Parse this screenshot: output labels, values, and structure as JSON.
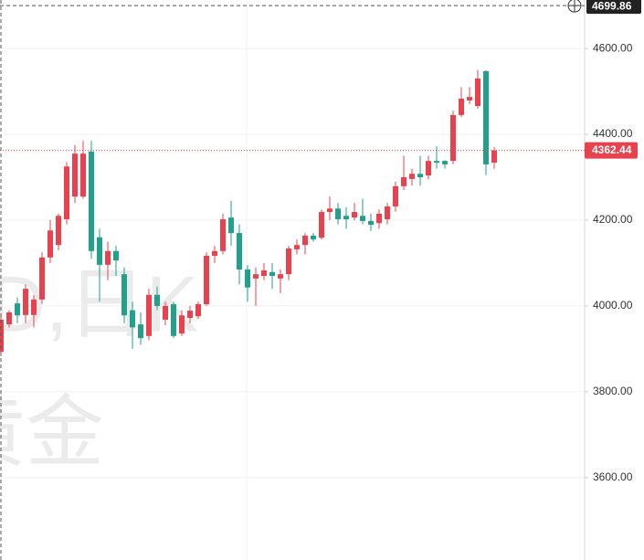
{
  "chart_data": {
    "type": "candlestick",
    "watermark": [
      "D,日K",
      "黄金"
    ],
    "up_color": "#e8424f",
    "down_color": "#22a08a",
    "open": [
      3893,
      3957,
      4006,
      3979,
      3979,
      4015,
      4113,
      4142,
      4202,
      4255,
      4255,
      4360,
      4160,
      4096,
      4128,
      4074,
      3990,
      3957,
      3930,
      4026,
      3968,
      4004,
      3936,
      3972,
      3976,
      4004,
      4117,
      4128,
      4206,
      4170,
      4085,
      4064,
      4070,
      4079,
      4064,
      4074,
      4132,
      4142,
      4164,
      4159,
      4219,
      4227,
      4210,
      4206,
      4210,
      4198,
      4193,
      4202,
      4232,
      4279,
      4296,
      4308,
      4304,
      4338,
      4338,
      4338,
      4445,
      4479,
      4466,
      4547,
      4334
    ],
    "high": [
      3978,
      3990,
      4020,
      4050,
      4025,
      4125,
      4200,
      4215,
      4335,
      4375,
      4385,
      4385,
      4180,
      4150,
      4140,
      4090,
      4010,
      3985,
      4040,
      4045,
      4010,
      4010,
      3990,
      4000,
      4010,
      4125,
      4140,
      4215,
      4245,
      4190,
      4095,
      4090,
      4100,
      4100,
      4085,
      4140,
      4155,
      4170,
      4170,
      4225,
      4255,
      4240,
      4230,
      4240,
      4250,
      4215,
      4225,
      4240,
      4290,
      4350,
      4320,
      4350,
      4350,
      4372,
      4340,
      4455,
      4510,
      4510,
      4550,
      4550,
      4370
    ],
    "low": [
      3883,
      3950,
      3960,
      3960,
      3950,
      4005,
      4100,
      4130,
      4190,
      4240,
      4250,
      4110,
      4010,
      4060,
      4070,
      3960,
      3900,
      3910,
      3920,
      3990,
      3955,
      3925,
      3930,
      3960,
      3970,
      4000,
      4100,
      4120,
      4140,
      4050,
      4010,
      4000,
      4060,
      4040,
      4030,
      4060,
      4120,
      4120,
      4150,
      4155,
      4200,
      4190,
      4180,
      4200,
      4190,
      4175,
      4180,
      4190,
      4220,
      4270,
      4280,
      4280,
      4295,
      4320,
      4320,
      4330,
      4440,
      4470,
      4460,
      4305,
      4320
    ],
    "close": [
      3968,
      3985,
      3978,
      4040,
      4015,
      4113,
      4176,
      4210,
      4325,
      4355,
      4355,
      4128,
      4096,
      4128,
      4106,
      3978,
      3950,
      3925,
      4026,
      4000,
      4000,
      3930,
      3978,
      3989,
      4004,
      4117,
      4128,
      4202,
      4170,
      4085,
      4043,
      4074,
      4083,
      4070,
      4074,
      4134,
      4142,
      4164,
      4155,
      4219,
      4227,
      4202,
      4202,
      4219,
      4198,
      4189,
      4215,
      4232,
      4279,
      4300,
      4308,
      4300,
      4338,
      4334,
      4330,
      4445,
      4483,
      4487,
      4530,
      4330,
      4362.44
    ],
    "ylim": [
      3408,
      4713
    ],
    "yticks": [
      {
        "value": 3600,
        "label": "3600.00"
      },
      {
        "value": 3800,
        "label": "3800.00"
      },
      {
        "value": 4000,
        "label": "4000.00"
      },
      {
        "value": 4200,
        "label": "4200.00"
      },
      {
        "value": 4400,
        "label": "4400.00"
      },
      {
        "value": 4600,
        "label": "4600.00"
      }
    ],
    "last_price": 4362.44,
    "crosshair_price": 4699.86
  }
}
